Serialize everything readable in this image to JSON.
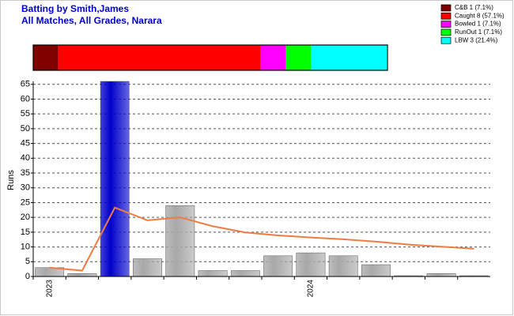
{
  "chart_data": [
    {
      "type": "bar",
      "title": "Batting by Smith,James",
      "subtitle": "All Matches, All Grades, Narara",
      "ylabel": "Runs",
      "categories": [
        "2023",
        null,
        null,
        null,
        null,
        null,
        null,
        null,
        "2024",
        null,
        null,
        null,
        null,
        null
      ],
      "values": [
        3,
        1,
        66,
        6,
        24,
        2,
        2,
        7,
        8,
        7,
        4,
        0,
        1,
        0
      ],
      "colors": [
        "#a8a8a8",
        "#a8a8a8",
        "#0000cc",
        "#a8a8a8",
        "#a8a8a8",
        "#a8a8a8",
        "#a8a8a8",
        "#a8a8a8",
        "#a8a8a8",
        "#a8a8a8",
        "#a8a8a8",
        "#a8a8a8",
        "#a8a8a8",
        "#a8a8a8"
      ],
      "line": {
        "type": "line",
        "color": "#f07c45",
        "values": [
          3,
          2,
          23.3,
          19,
          20,
          17,
          14.9,
          13.9,
          13.2,
          12.6,
          11.8,
          10.8,
          10.1,
          9.4
        ]
      },
      "ylim": [
        0,
        66
      ],
      "yticks": [
        0,
        5,
        10,
        15,
        20,
        25,
        30,
        35,
        40,
        45,
        50,
        55,
        60,
        65
      ],
      "grid": true
    },
    {
      "type": "stacked-bar",
      "orientation": "horizontal",
      "xlim": [
        0,
        100
      ],
      "legend": "top-right",
      "series": [
        {
          "name": "C&B 1 (7.1%)",
          "color": "#800000",
          "values": [
            7.1
          ]
        },
        {
          "name": "Caught 8 (57.1%)",
          "color": "#ff0000",
          "values": [
            57.1
          ]
        },
        {
          "name": "Bowled 1 (7.1%)",
          "color": "#ff00ff",
          "values": [
            7.1
          ]
        },
        {
          "name": "RunOut 1 (7.1%)",
          "color": "#00ff00",
          "values": [
            7.1
          ]
        },
        {
          "name": "LBW 3 (21.4%)",
          "color": "#00ffff",
          "values": [
            21.4
          ]
        }
      ]
    }
  ]
}
